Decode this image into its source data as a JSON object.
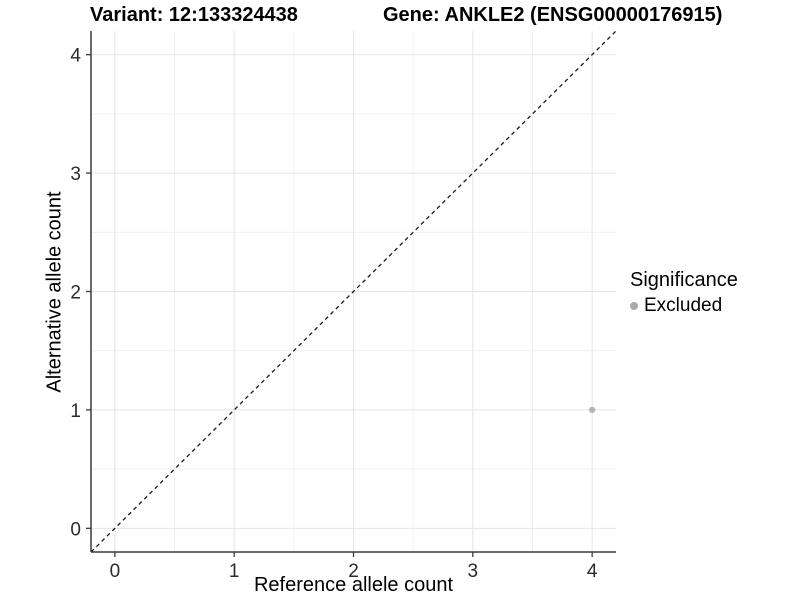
{
  "header": {
    "variant_title": "Variant: 12:133324438",
    "gene_title": "Gene: ANKLE2 (ENSG00000176915)"
  },
  "chart_data": {
    "type": "scatter",
    "title": "Variant: 12:133324438 | Gene: ANKLE2 (ENSG00000176915)",
    "xlabel": "Reference allele count",
    "ylabel": "Alternative allele count",
    "xlim": [
      -0.2,
      4.2
    ],
    "ylim": [
      -0.2,
      4.2
    ],
    "x_ticks": [
      0,
      1,
      2,
      3,
      4
    ],
    "y_ticks": [
      0,
      1,
      2,
      3,
      4
    ],
    "x_minor_ticks": [
      0.5,
      1.5,
      2.5,
      3.5
    ],
    "y_minor_ticks": [
      0.5,
      1.5,
      2.5,
      3.5
    ],
    "grid": "major and minor, light gray on white panel",
    "series": [
      {
        "name": "Excluded",
        "color": "#b5b5b5",
        "points": [
          {
            "x": 4,
            "y": 1
          }
        ]
      }
    ],
    "reference_line": {
      "style": "dashed",
      "slope": 1,
      "intercept": 0,
      "color": "#1a1a1a"
    },
    "legend": {
      "title": "Significance",
      "position": "right",
      "entries": [
        {
          "label": "Excluded",
          "color": "#b5b5b5"
        }
      ]
    }
  },
  "colors": {
    "background": "#ffffff",
    "grid_major": "#e4e4e4",
    "grid_minor": "#f1f1f1",
    "axis_line": "#3a3a3a",
    "tick_mark": "#3a3a3a",
    "tick_label": "#2b2b2b"
  }
}
